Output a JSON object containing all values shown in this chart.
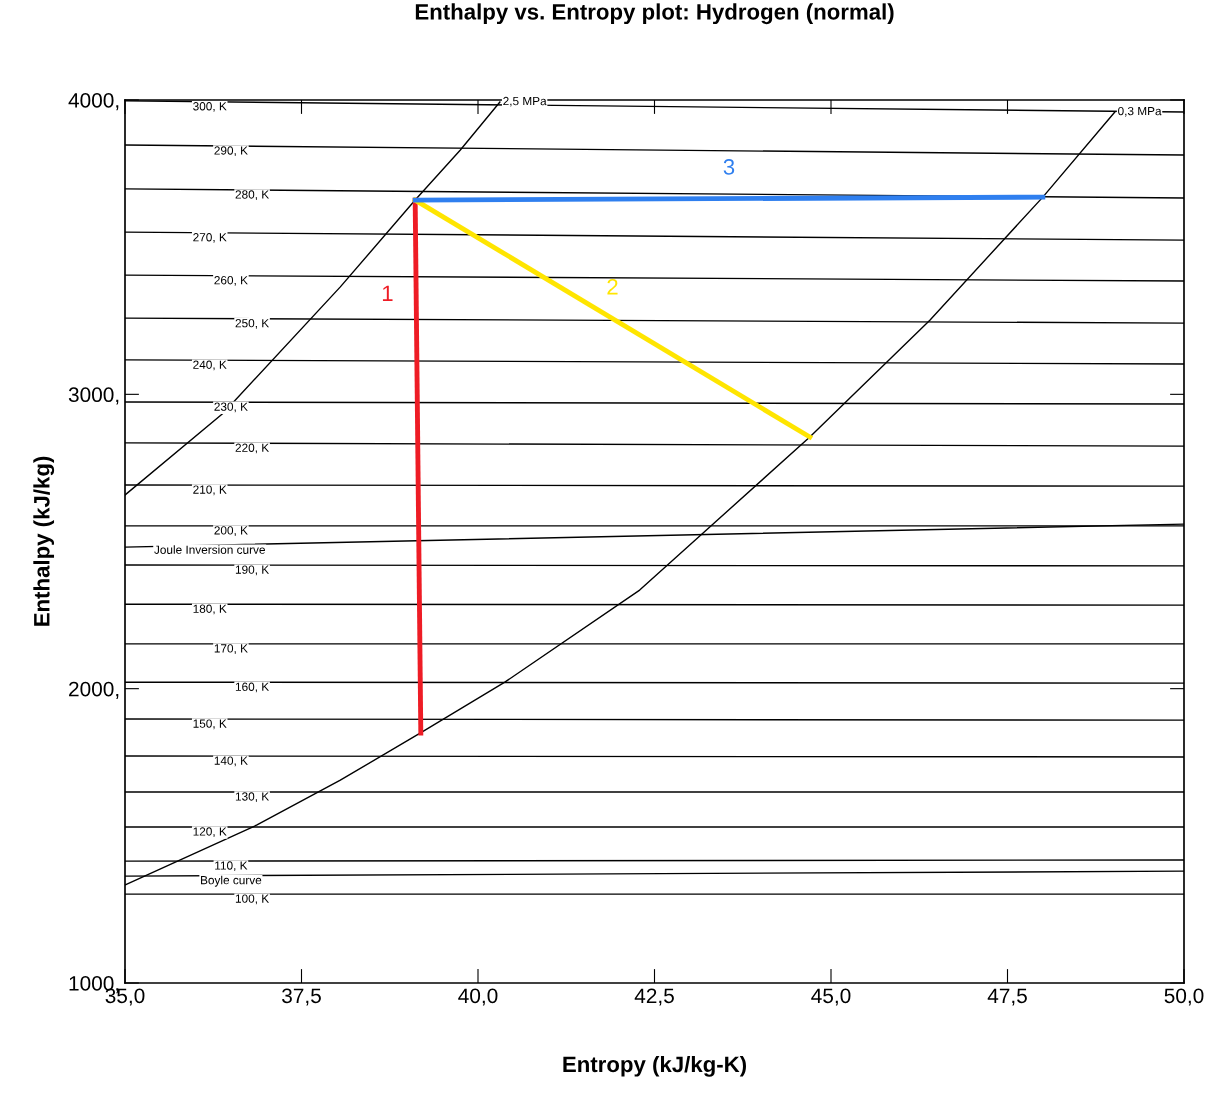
{
  "chart_data": {
    "type": "line",
    "title": "Enthalpy vs. Entropy plot: Hydrogen (normal)",
    "xlabel": "Entropy (kJ/kg-K)",
    "ylabel": "Enthalpy (kJ/kg)",
    "xlim": [
      35,
      50
    ],
    "ylim": [
      1000,
      4000
    ],
    "xticks": [
      {
        "value": 35,
        "label": "35,0"
      },
      {
        "value": 37.5,
        "label": "37,5"
      },
      {
        "value": 40,
        "label": "40,0"
      },
      {
        "value": 42.5,
        "label": "42,5"
      },
      {
        "value": 45,
        "label": "45,0"
      },
      {
        "value": 47.5,
        "label": "47,5"
      },
      {
        "value": 50,
        "label": "50,0"
      }
    ],
    "yticks": [
      {
        "value": 1000,
        "label": "1000,"
      },
      {
        "value": 2000,
        "label": "2000,"
      },
      {
        "value": 3000,
        "label": "3000,"
      },
      {
        "value": 4000,
        "label": "4000,"
      }
    ],
    "grid": false,
    "legend": false,
    "marker": "none",
    "series": [
      {
        "name": "300, K",
        "color": "#000000",
        "x": [
          35,
          50
        ],
        "values": [
          3997,
          3959
        ]
      },
      {
        "name": "290, K",
        "color": "#000000",
        "x": [
          35,
          50
        ],
        "values": [
          3847,
          3813
        ]
      },
      {
        "name": "280, K",
        "color": "#000000",
        "x": [
          35,
          50
        ],
        "values": [
          3698,
          3667
        ]
      },
      {
        "name": "270, K",
        "color": "#000000",
        "x": [
          35,
          50
        ],
        "values": [
          3551,
          3524
        ]
      },
      {
        "name": "260, K",
        "color": "#000000",
        "x": [
          35,
          50
        ],
        "values": [
          3405,
          3385
        ]
      },
      {
        "name": "250, K",
        "color": "#000000",
        "x": [
          35,
          50
        ],
        "values": [
          3259,
          3242
        ]
      },
      {
        "name": "240, K",
        "color": "#000000",
        "x": [
          35,
          50
        ],
        "values": [
          3117,
          3103
        ]
      },
      {
        "name": "230, K",
        "color": "#000000",
        "x": [
          35,
          50
        ],
        "values": [
          2974,
          2967
        ]
      },
      {
        "name": "220, K",
        "color": "#000000",
        "x": [
          35,
          50
        ],
        "values": [
          2835,
          2824
        ]
      },
      {
        "name": "210, K",
        "color": "#000000",
        "x": [
          35,
          50
        ],
        "values": [
          2692,
          2688
        ]
      },
      {
        "name": "200, K",
        "color": "#000000",
        "x": [
          35,
          50
        ],
        "values": [
          2553,
          2553
        ]
      },
      {
        "name": "190, K",
        "color": "#000000",
        "x": [
          35,
          50
        ],
        "values": [
          2420,
          2417
        ]
      },
      {
        "name": "180, K",
        "color": "#000000",
        "x": [
          35,
          50
        ],
        "values": [
          2287,
          2284
        ]
      },
      {
        "name": "170, K",
        "color": "#000000",
        "x": [
          35,
          50
        ],
        "values": [
          2152,
          2152
        ]
      },
      {
        "name": "160, K",
        "color": "#000000",
        "x": [
          35,
          50
        ],
        "values": [
          2022,
          2019
        ]
      },
      {
        "name": "150, K",
        "color": "#000000",
        "x": [
          35,
          50
        ],
        "values": [
          1897,
          1893
        ]
      },
      {
        "name": "140, K",
        "color": "#000000",
        "x": [
          35,
          50
        ],
        "values": [
          1771,
          1768
        ]
      },
      {
        "name": "130, K",
        "color": "#000000",
        "x": [
          35,
          50
        ],
        "values": [
          1649,
          1649
        ]
      },
      {
        "name": "120, K",
        "color": "#000000",
        "x": [
          35,
          50
        ],
        "values": [
          1530,
          1530
        ]
      },
      {
        "name": "110, K",
        "color": "#000000",
        "x": [
          35,
          50
        ],
        "values": [
          1414,
          1418
        ]
      },
      {
        "name": "100, K",
        "color": "#000000",
        "x": [
          35,
          50
        ],
        "values": [
          1302,
          1302
        ]
      },
      {
        "name": "Joule Inversion curve",
        "color": "#000000",
        "x": [
          35,
          50
        ],
        "values": [
          2481,
          2559
        ]
      },
      {
        "name": "Boyle curve",
        "color": "#000000",
        "x": [
          35,
          50
        ],
        "values": [
          1363,
          1380
        ]
      },
      {
        "name": "2,5 MPa",
        "color": "#000000",
        "x": [
          35.0,
          36.39,
          38.05,
          39.11,
          39.75,
          40.31
        ],
        "values": [
          2658,
          2936,
          3365,
          3660,
          3830,
          3993
        ]
      },
      {
        "name": "0,3 MPa",
        "color": "#000000",
        "x": [
          35.0,
          36.87,
          38.05,
          39.18,
          40.38,
          42.29,
          44.7,
          46.4,
          48.0,
          49.02
        ],
        "values": [
          1333,
          1537,
          1689,
          1849,
          2022,
          2335,
          2855,
          3252,
          3670,
          3959
        ]
      },
      {
        "name": "1",
        "color": "#ee1c25",
        "x": [
          39.11,
          39.19
        ],
        "values": [
          3660,
          1849
        ]
      },
      {
        "name": "2",
        "color": "#ffe500",
        "x": [
          39.11,
          44.7
        ],
        "values": [
          3660,
          2855
        ]
      },
      {
        "name": "3",
        "color": "#2f7fef",
        "x": [
          39.11,
          48.0
        ],
        "values": [
          3660,
          3670
        ]
      }
    ]
  }
}
